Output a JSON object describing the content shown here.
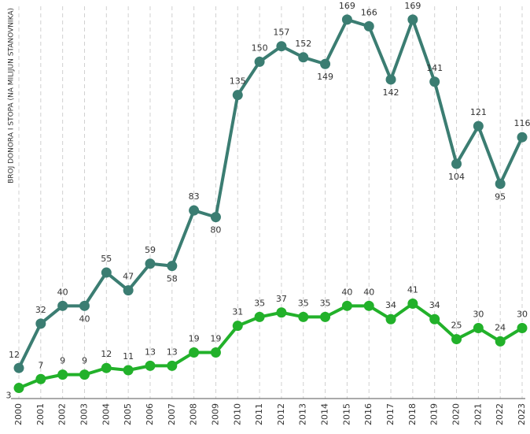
{
  "chart_data": {
    "type": "line",
    "y_label": "BROJ DONORA I STOPA (NA MILIJUN STANOVNIKA)",
    "categories": [
      "2000",
      "2001",
      "2002",
      "2003",
      "2004",
      "2005",
      "2006",
      "2007",
      "2008",
      "2009",
      "2010",
      "2011",
      "2012",
      "2013",
      "2014",
      "2015",
      "2016",
      "2017",
      "2018",
      "2019",
      "2020",
      "2021",
      "2022",
      "2023"
    ],
    "series": [
      {
        "color": "#3b7d72",
        "values": [
          12,
          32,
          40,
          40,
          55,
          47,
          59,
          58,
          83,
          80,
          135,
          150,
          157,
          152,
          149,
          169,
          166,
          142,
          169,
          141,
          104,
          121,
          95,
          116
        ]
      },
      {
        "color": "#22b12a",
        "values": [
          3,
          7,
          9,
          9,
          12,
          11,
          13,
          13,
          19,
          19,
          31,
          35,
          37,
          35,
          35,
          40,
          40,
          34,
          41,
          34,
          25,
          30,
          24,
          30
        ]
      }
    ],
    "ylim": [
      0,
      175
    ],
    "grid": true
  }
}
